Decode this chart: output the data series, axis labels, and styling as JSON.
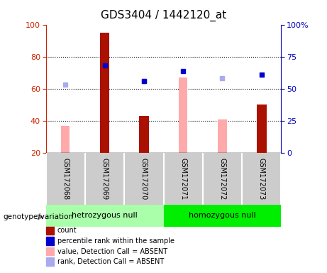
{
  "title": "GDS3404 / 1442120_at",
  "samples": [
    "GSM172068",
    "GSM172069",
    "GSM172070",
    "GSM172071",
    "GSM172072",
    "GSM172073"
  ],
  "count_bars": {
    "GSM172068": null,
    "GSM172069": 95,
    "GSM172070": 43,
    "GSM172071": null,
    "GSM172072": null,
    "GSM172073": 50
  },
  "percentile_rank_squares": {
    "GSM172069": 68,
    "GSM172070": 56,
    "GSM172071": 64,
    "GSM172073": 61
  },
  "absent_value_bars": {
    "GSM172068": 37,
    "GSM172071": 67,
    "GSM172072": 41
  },
  "absent_rank_squares": {
    "GSM172068": 53,
    "GSM172070": 56,
    "GSM172072": 58
  },
  "ylim_left": [
    20,
    100
  ],
  "ylim_right": [
    0,
    100
  ],
  "yticks_left": [
    20,
    40,
    60,
    80,
    100
  ],
  "yticks_right": [
    0,
    25,
    50,
    75,
    100
  ],
  "ytick_labels_right": [
    "0",
    "25",
    "50",
    "75",
    "100%"
  ],
  "left_axis_color": "#cc2200",
  "right_axis_color": "#0000bb",
  "count_color": "#aa1100",
  "absent_value_color": "#ffaaaa",
  "percentile_color": "#0000cc",
  "absent_rank_color": "#aaaaee",
  "bg_plot": "#ffffff",
  "bg_label": "#cccccc",
  "bg_genotype_1": "#aaffaa",
  "bg_genotype_2": "#00ee00",
  "group1_label": "hetrozygous null",
  "group2_label": "homozygous null",
  "legend_items": [
    {
      "color": "#aa1100",
      "label": "count"
    },
    {
      "color": "#0000cc",
      "label": "percentile rank within the sample"
    },
    {
      "color": "#ffaaaa",
      "label": "value, Detection Call = ABSENT"
    },
    {
      "color": "#aaaaee",
      "label": "rank, Detection Call = ABSENT"
    }
  ]
}
